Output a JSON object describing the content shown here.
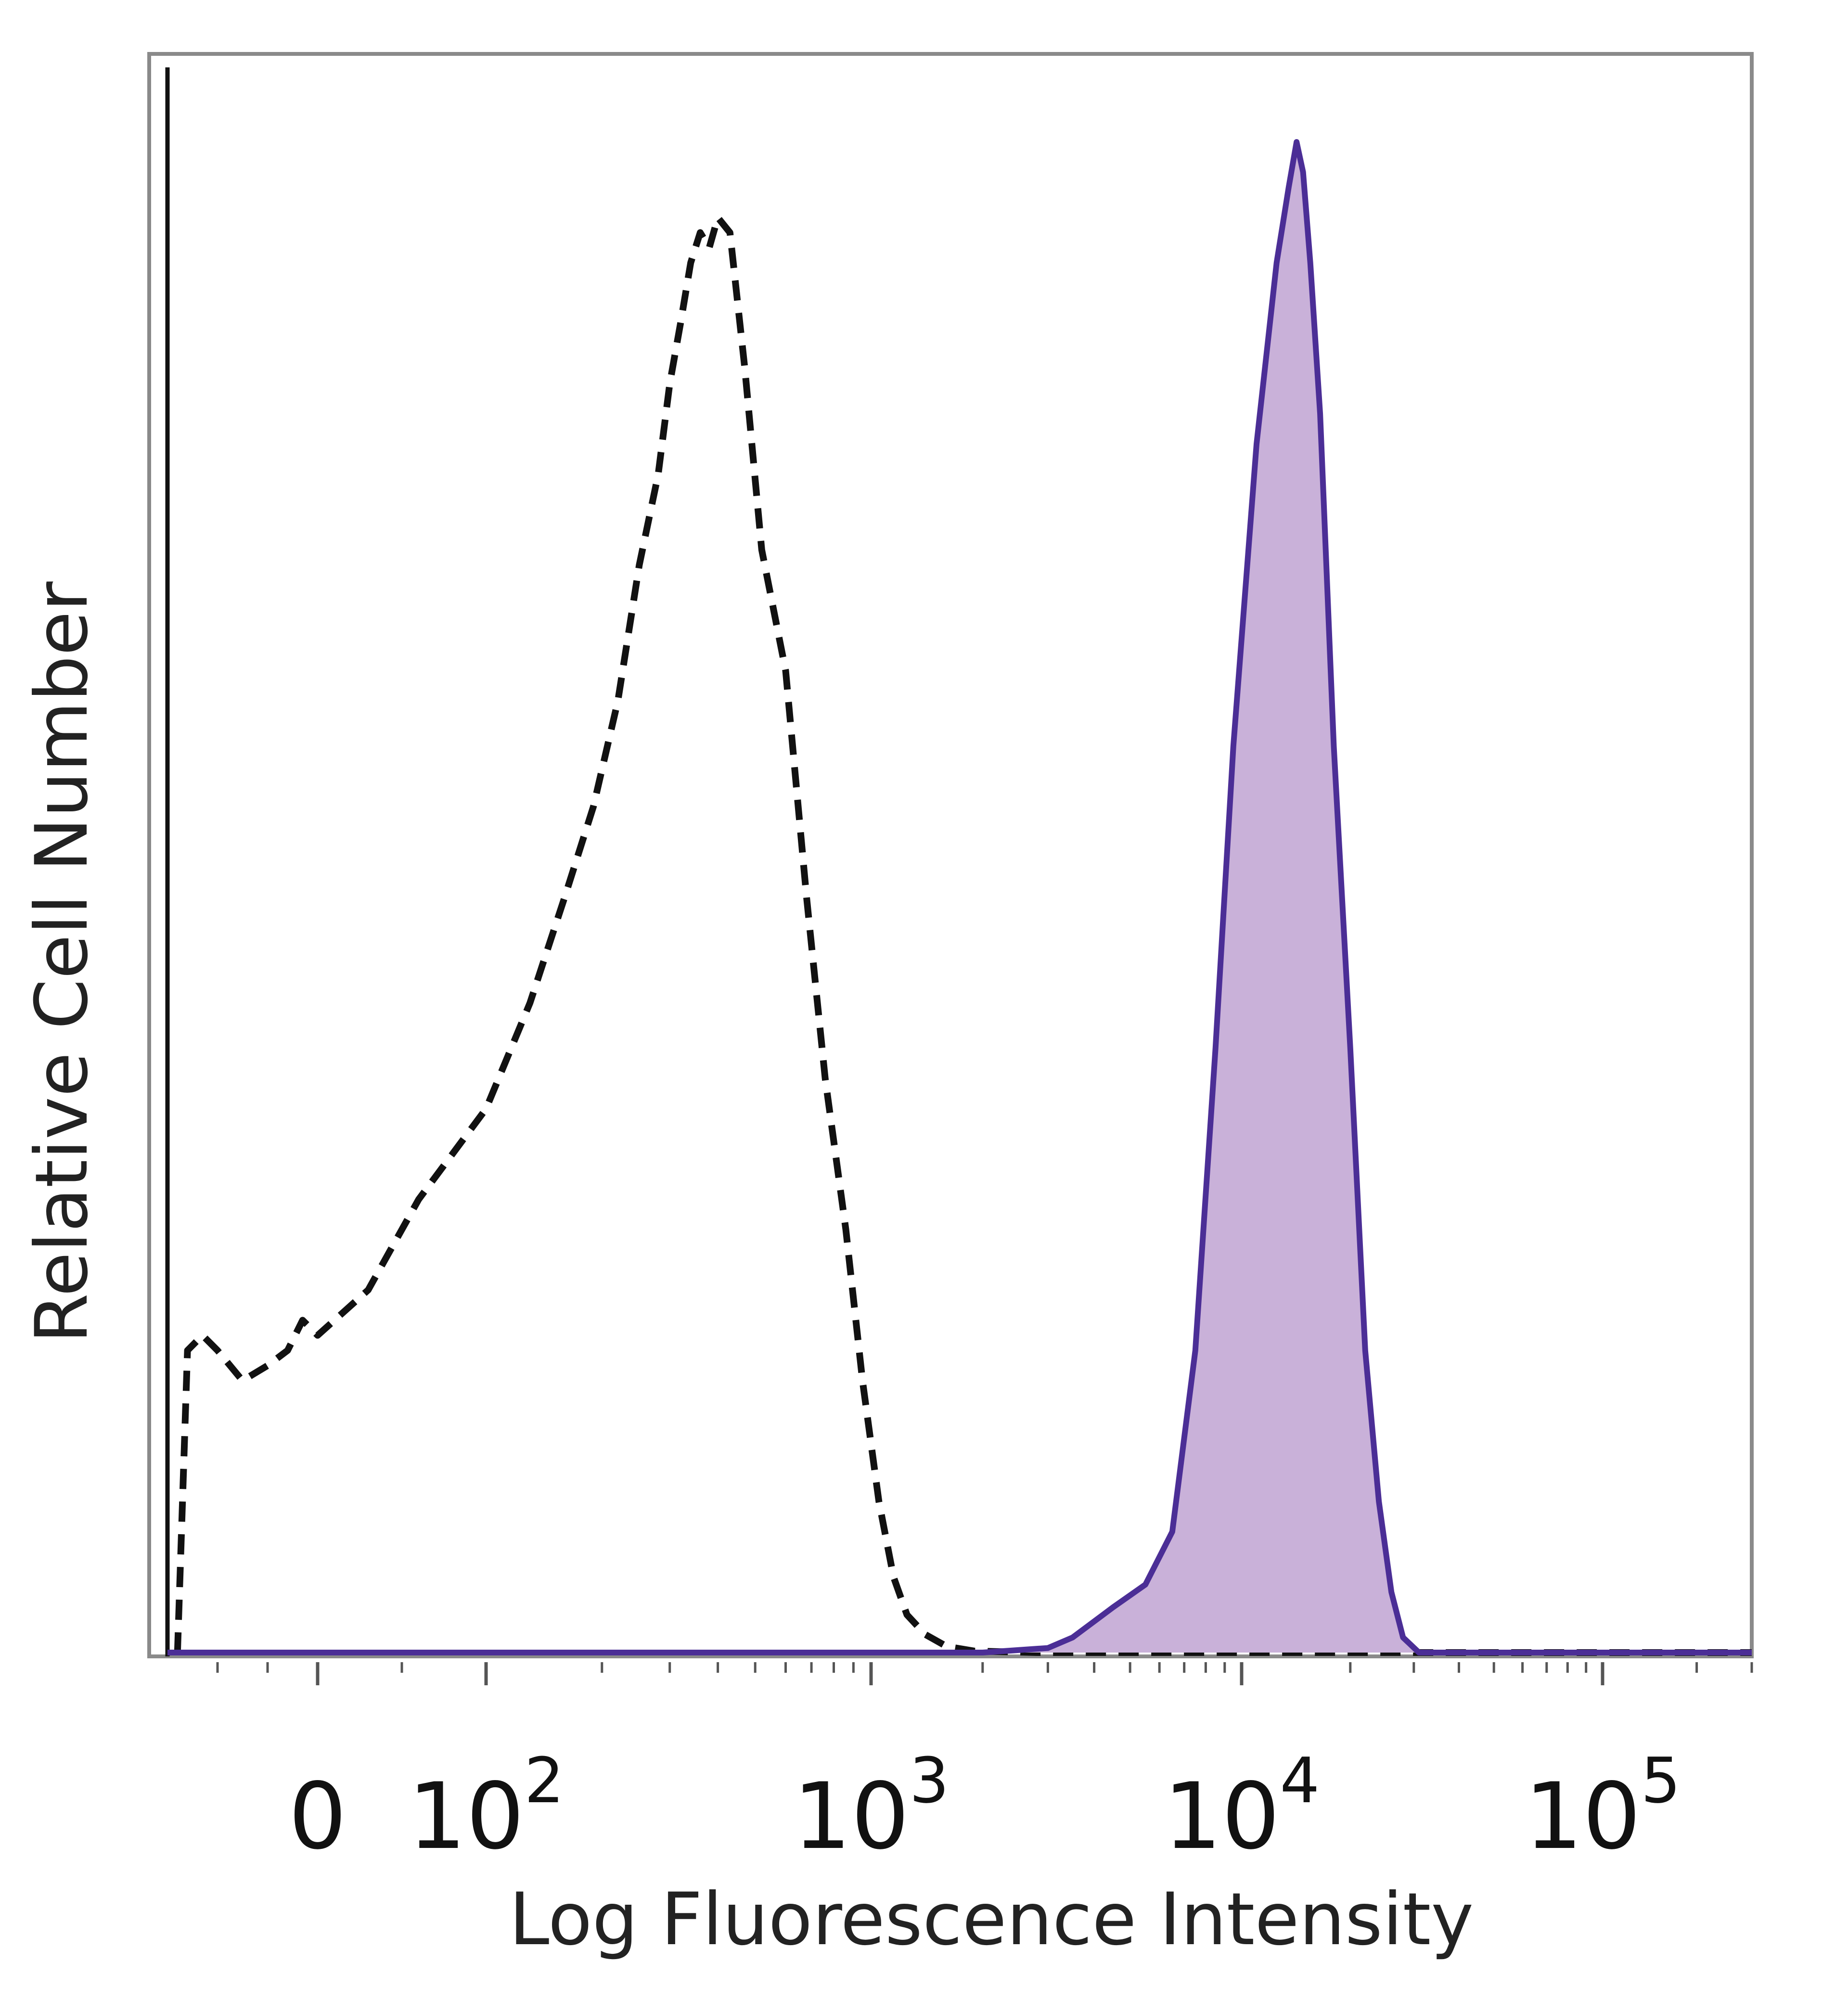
{
  "chart_data": {
    "type": "area",
    "title": "",
    "xlabel": "Log Fluorescence Intensity",
    "ylabel": "Relative Cell Number",
    "x_scale": "logicle",
    "xlim": [
      -300,
      300000
    ],
    "ylim": [
      0,
      100
    ],
    "grid": false,
    "legend": "none",
    "x_ticks": [
      {
        "value": 0,
        "base": "0",
        "exp": ""
      },
      {
        "value": 100,
        "base": "10",
        "exp": "2"
      },
      {
        "value": 1000,
        "base": "10",
        "exp": "3"
      },
      {
        "value": 10000,
        "base": "10",
        "exp": "4"
      },
      {
        "value": 100000,
        "base": "10",
        "exp": "5"
      }
    ],
    "series": [
      {
        "style": "dashed",
        "color": "#111111",
        "filled": false,
        "x": [
          -280,
          -260,
          -230,
          -200,
          -150,
          -100,
          -60,
          -30,
          0,
          30,
          60,
          100,
          130,
          160,
          190,
          220,
          250,
          280,
          300,
          320,
          340,
          360,
          380,
          400,
          430,
          470,
          520,
          600,
          680,
          760,
          860,
          950,
          1050,
          1150,
          1250,
          1400,
          1600,
          1900,
          2300,
          2800,
          3300,
          5000,
          10000,
          50000,
          300000
        ],
        "y": [
          0,
          20,
          21,
          20,
          18,
          19,
          20,
          22,
          21,
          24,
          30,
          36,
          43,
          50,
          56,
          63,
          72,
          78,
          84,
          88,
          92,
          94,
          93,
          95,
          94,
          85,
          73,
          65,
          50,
          38,
          28,
          18,
          10,
          5,
          2.5,
          1.2,
          0.4,
          0.1,
          0.05,
          0,
          0,
          0,
          0,
          0,
          0
        ]
      },
      {
        "style": "solid",
        "color": "#4B2E96",
        "filled": true,
        "fill": "#C9B1D9",
        "x": [
          -300,
          2000,
          3000,
          3500,
          4500,
          5500,
          6500,
          7500,
          8500,
          9500,
          11000,
          12500,
          13500,
          14200,
          14800,
          15500,
          16500,
          18000,
          20000,
          22000,
          24000,
          26000,
          28000,
          31000,
          35000,
          50000,
          300000
        ],
        "y": [
          0,
          0,
          0.3,
          1,
          3,
          4.5,
          8,
          20,
          40,
          60,
          80,
          92,
          97,
          100,
          98,
          92,
          82,
          60,
          40,
          20,
          10,
          4,
          1,
          0,
          0,
          0,
          0
        ]
      }
    ]
  }
}
